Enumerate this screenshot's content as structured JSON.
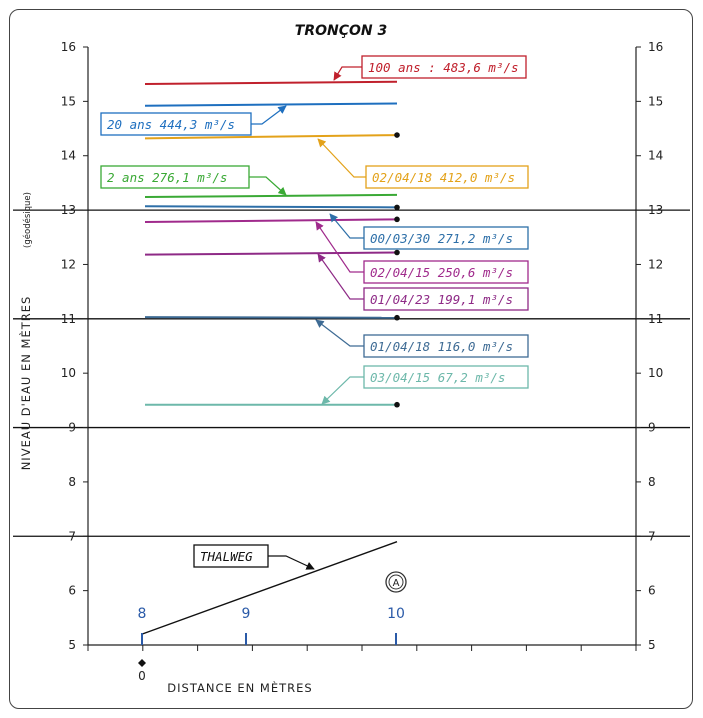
{
  "chart_data": {
    "type": "line",
    "title": "TRONÇON 3",
    "xlabel": "DISTANCE EN MÈTRES",
    "ylabel": "NIVEAU D'EAU EN MÈTRES",
    "ylabel_note": "(géodésique)",
    "ylim": [
      5,
      16
    ],
    "yticks": [
      "5",
      "6",
      "7",
      "8",
      "9",
      "10",
      "11",
      "12",
      "13",
      "14",
      "15",
      "16"
    ],
    "x_origin_label": "0",
    "highlight_levels": [
      7,
      9,
      11,
      13
    ],
    "sections": [
      "8",
      "9",
      "10"
    ],
    "marker_label": "A",
    "series": [
      {
        "name": "100 ans : 483,6 m³/s",
        "color": "#c0202c",
        "values": [
          15.32,
          15.36
        ],
        "endpoint": false
      },
      {
        "name": "20 ans  444,3 m³/s",
        "color": "#1e6fbf",
        "values": [
          14.92,
          14.96
        ],
        "endpoint": false
      },
      {
        "name": "02/04/18  412,0 m³/s",
        "color": "#e3a21a",
        "values": [
          14.32,
          14.38
        ],
        "endpoint": true
      },
      {
        "name": "2 ans  276,1 m³/s",
        "color": "#3aa935",
        "values": [
          13.24,
          13.28
        ],
        "endpoint": false
      },
      {
        "name": "00/03/30  271,2 m³/s",
        "color": "#2d6fa8",
        "values": [
          13.07,
          13.05
        ],
        "endpoint": true
      },
      {
        "name": "02/04/15  250,6 m³/s",
        "color": "#a02a8c",
        "values": [
          12.78,
          12.83
        ],
        "endpoint": true
      },
      {
        "name": "01/04/23  199,1 m³/s",
        "color": "#8e2a86",
        "values": [
          12.18,
          12.22
        ],
        "endpoint": true
      },
      {
        "name": "01/04/18  116,0 m³/s",
        "color": "#3e6b94",
        "values": [
          11.03,
          11.02
        ],
        "endpoint": true
      },
      {
        "name": "03/04/15  67,2 m³/s",
        "color": "#6db8aa",
        "values": [
          9.42,
          9.42
        ],
        "endpoint": true
      },
      {
        "name": "THALWEG",
        "color": "#111111",
        "values": [
          5.2,
          6.9
        ],
        "endpoint": false
      }
    ]
  }
}
